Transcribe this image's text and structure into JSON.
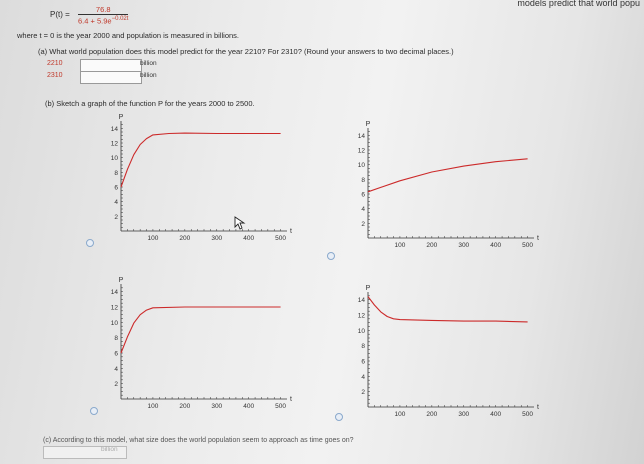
{
  "header": {
    "title_fragment": "models predict that world popu"
  },
  "formula": {
    "lhs": "P(t) =",
    "numerator": "76.8",
    "denominator": "6.4 + 5.9e",
    "exponent": "−0.02t"
  },
  "where_text": "where t = 0 is the year 2000 and population is measured in billions.",
  "part_a": {
    "question": "(a) What world population does this model predict for the year 2210? For 2310? (Round your answers to two decimal places.)",
    "rows": [
      {
        "year": "2210",
        "value": "",
        "unit": "billion"
      },
      {
        "year": "2310",
        "value": "",
        "unit": "billion"
      }
    ]
  },
  "part_b": {
    "question": "(b) Sketch a graph of the function P for the years 2000 to 2500."
  },
  "part_c": {
    "question": "(c) According to this model, what size does the world population seem to approach as time goes on?",
    "unit": "billion",
    "value": ""
  },
  "graphs": [
    {
      "ylabel": "P",
      "xlabel": "t",
      "yticks": [
        "2",
        "4",
        "6",
        "8",
        "10",
        "12",
        "14"
      ],
      "xticks": [
        "100",
        "200",
        "300",
        "400",
        "500"
      ]
    },
    {
      "ylabel": "P",
      "xlabel": "t",
      "yticks": [
        "2",
        "4",
        "6",
        "8",
        "10",
        "12",
        "14"
      ],
      "xticks": [
        "100",
        "200",
        "300",
        "400",
        "500"
      ]
    },
    {
      "ylabel": "P",
      "xlabel": "t",
      "yticks": [
        "2",
        "4",
        "6",
        "8",
        "10",
        "12",
        "14"
      ],
      "xticks": [
        "100",
        "200",
        "300",
        "400",
        "500"
      ]
    },
    {
      "ylabel": "P",
      "xlabel": "t",
      "yticks": [
        "2",
        "4",
        "6",
        "8",
        "10",
        "12",
        "14"
      ],
      "xticks": [
        "100",
        "200",
        "300",
        "400",
        "500"
      ]
    }
  ],
  "chart_data": [
    {
      "type": "line",
      "series": [
        {
          "x": [
            0,
            20,
            40,
            60,
            80,
            100,
            150,
            200,
            300,
            400,
            500
          ],
          "y": [
            6,
            8.4,
            10.4,
            11.8,
            12.6,
            13.1,
            13.3,
            13.35,
            13.3,
            13.3,
            13.3
          ]
        }
      ],
      "xlim": [
        0,
        520
      ],
      "ylim": [
        0,
        15
      ]
    },
    {
      "type": "line",
      "series": [
        {
          "x": [
            0,
            100,
            200,
            300,
            400,
            500
          ],
          "y": [
            6.3,
            7.8,
            9.0,
            9.8,
            10.4,
            10.8
          ]
        }
      ],
      "xlim": [
        0,
        520
      ],
      "ylim": [
        0,
        15
      ]
    },
    {
      "type": "line",
      "series": [
        {
          "x": [
            0,
            20,
            40,
            60,
            80,
            100,
            200,
            300,
            400,
            500
          ],
          "y": [
            6,
            8.1,
            9.9,
            11.0,
            11.6,
            11.9,
            12.0,
            12.0,
            12.0,
            12.0
          ]
        }
      ],
      "xlim": [
        0,
        520
      ],
      "ylim": [
        0,
        15
      ]
    },
    {
      "type": "line",
      "series": [
        {
          "x": [
            0,
            20,
            40,
            60,
            80,
            100,
            200,
            300,
            400,
            500
          ],
          "y": [
            14.4,
            13.3,
            12.4,
            11.8,
            11.5,
            11.4,
            11.3,
            11.2,
            11.2,
            11.1
          ]
        }
      ],
      "xlim": [
        0,
        520
      ],
      "ylim": [
        0,
        15
      ]
    }
  ]
}
